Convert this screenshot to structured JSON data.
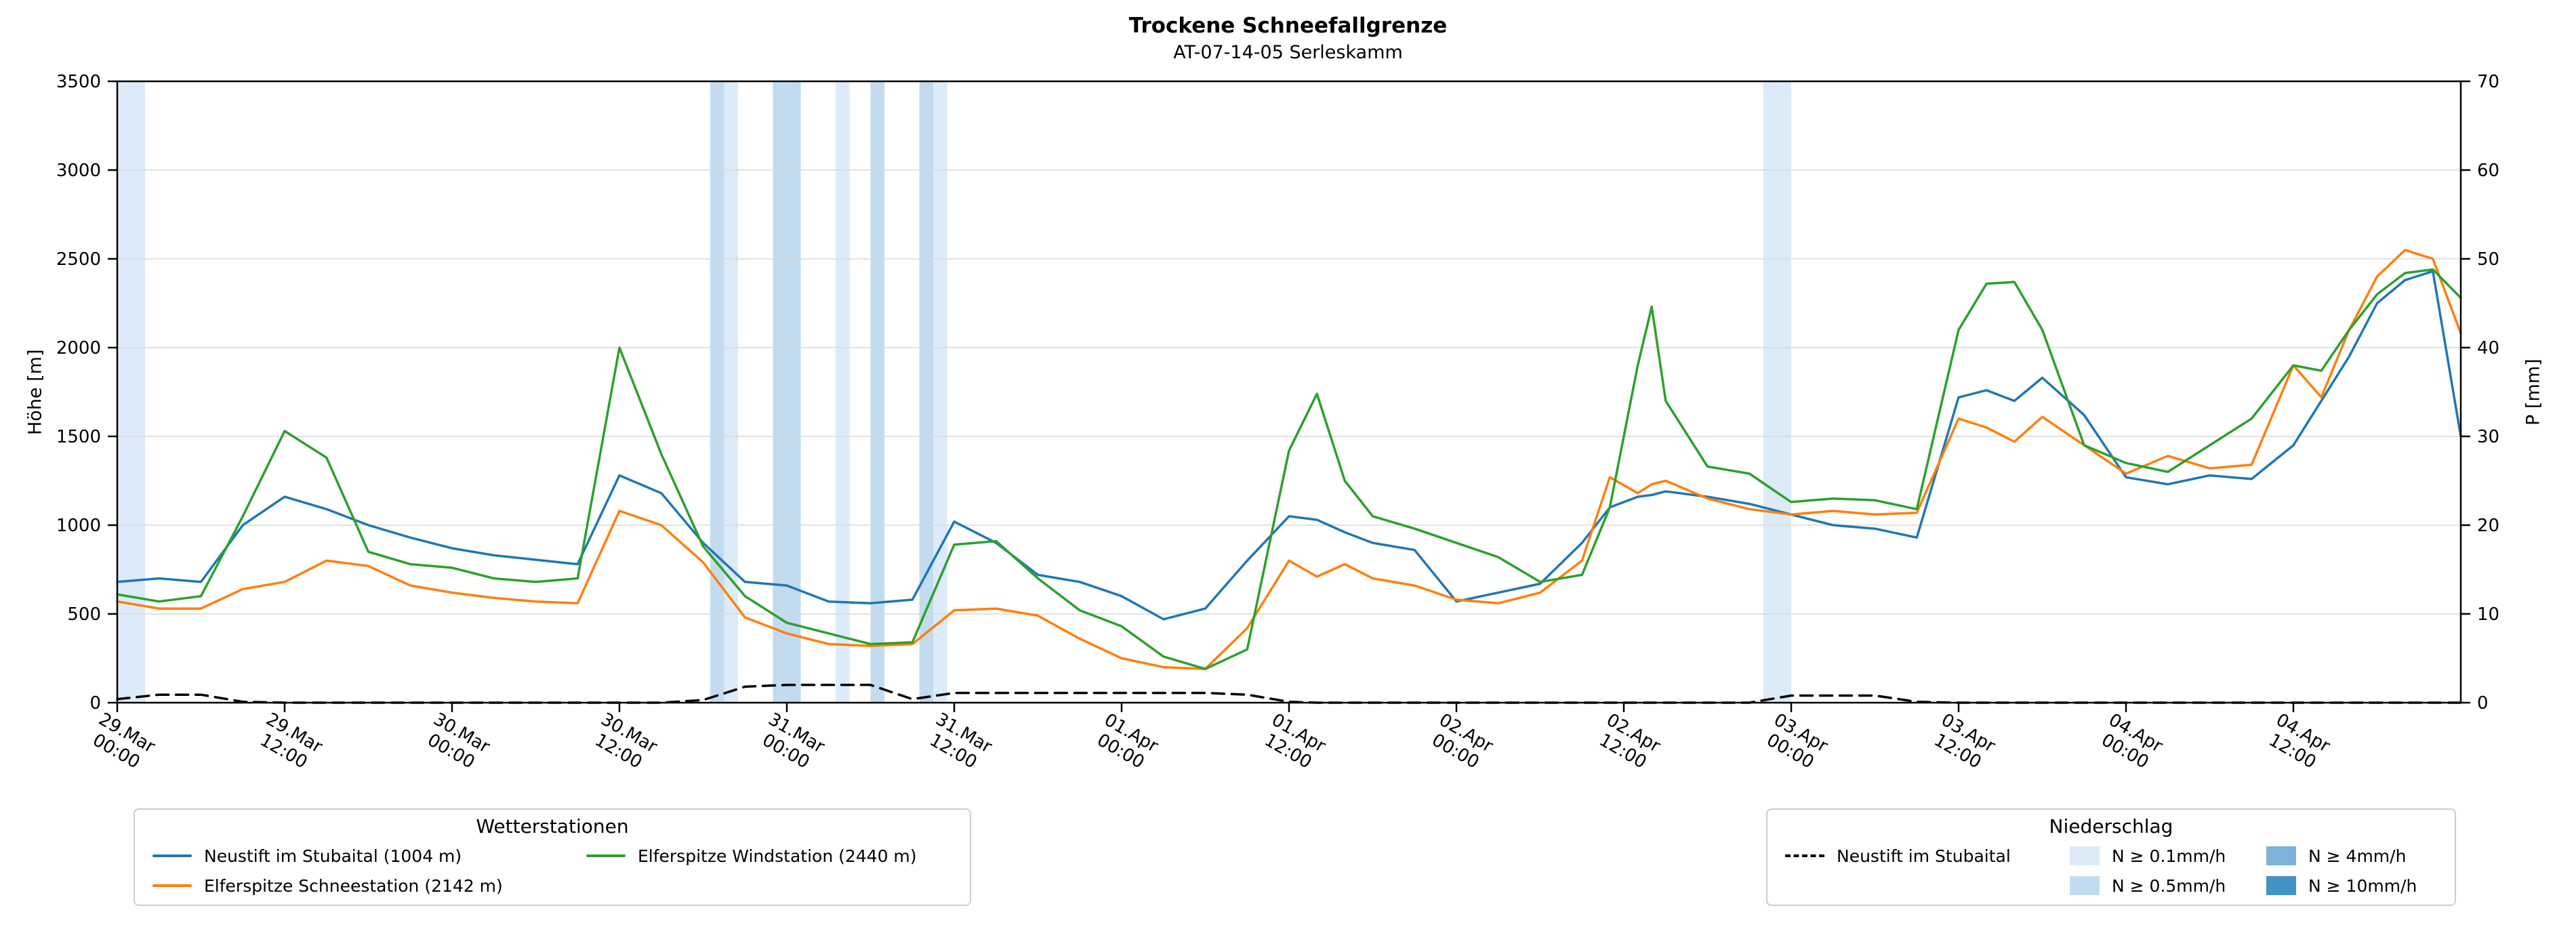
{
  "title": "Trockene Schneefallgrenze",
  "subtitle": "AT-07-14-05 Serleskamm",
  "axes": {
    "y_left": {
      "label": "Höhe [m]",
      "min": 0,
      "max": 3500,
      "ticks": [
        0,
        500,
        1000,
        1500,
        2000,
        2500,
        3000,
        3500
      ]
    },
    "y_right": {
      "label": "P [mm]",
      "min": 0,
      "max": 70,
      "ticks": [
        0,
        10,
        20,
        30,
        40,
        50,
        60,
        70
      ]
    },
    "x": {
      "start_hour": 0,
      "end_hour": 168,
      "tick_interval_h": 12,
      "tick_labels": [
        [
          "29.Mar",
          "00:00"
        ],
        [
          "29.Mar",
          "12:00"
        ],
        [
          "30.Mar",
          "00:00"
        ],
        [
          "30.Mar",
          "12:00"
        ],
        [
          "31.Mar",
          "00:00"
        ],
        [
          "31.Mar",
          "12:00"
        ],
        [
          "01.Apr",
          "00:00"
        ],
        [
          "01.Apr",
          "12:00"
        ],
        [
          "02.Apr",
          "00:00"
        ],
        [
          "02.Apr",
          "12:00"
        ],
        [
          "03.Apr",
          "00:00"
        ],
        [
          "03.Apr",
          "12:00"
        ],
        [
          "04.Apr",
          "00:00"
        ],
        [
          "04.Apr",
          "12:00"
        ]
      ]
    },
    "grid": "horizontal-only"
  },
  "chart_data": {
    "type": "line",
    "title": "Trockene Schneefallgrenze",
    "subtitle": "AT-07-14-05 Serleskamm",
    "xlabel": "",
    "ylabel_left": "Höhe [m]",
    "ylabel_right": "P [mm]",
    "ylim_left": [
      0,
      3500
    ],
    "ylim_right": [
      0,
      70
    ],
    "x_unit": "hours since 29.Mar 00:00",
    "x_hours": [
      0,
      3,
      6,
      9,
      12,
      15,
      18,
      21,
      24,
      27,
      30,
      33,
      36,
      39,
      42,
      45,
      48,
      51,
      54,
      57,
      60,
      63,
      66,
      69,
      72,
      75,
      78,
      81,
      84,
      86,
      88,
      90,
      93,
      96,
      99,
      102,
      105,
      107,
      109,
      110,
      111,
      114,
      117,
      120,
      123,
      126,
      129,
      132,
      134,
      136,
      138,
      141,
      144,
      147,
      150,
      153,
      156,
      158,
      160,
      162,
      164,
      166,
      168
    ],
    "series": [
      {
        "id": "neustift",
        "name": "Neustift im Stubaital (1004 m)",
        "color": "#1f77b4",
        "axis": "left",
        "style": "solid",
        "values": [
          680,
          700,
          680,
          1000,
          1160,
          1090,
          1000,
          930,
          870,
          830,
          805,
          780,
          1280,
          1180,
          900,
          680,
          660,
          570,
          560,
          580,
          1020,
          900,
          720,
          680,
          600,
          470,
          530,
          800,
          1050,
          1030,
          960,
          900,
          860,
          570,
          620,
          670,
          900,
          1100,
          1160,
          1170,
          1190,
          1160,
          1120,
          1060,
          1000,
          980,
          930,
          1720,
          1760,
          1700,
          1830,
          1620,
          1270,
          1230,
          1280,
          1260,
          1450,
          1700,
          1950,
          2250,
          2380,
          2430,
          1500
        ]
      },
      {
        "id": "schneestation",
        "name": "Elferspitze Schneestation (2142 m)",
        "color": "#ff7f0e",
        "axis": "left",
        "style": "solid",
        "values": [
          570,
          530,
          530,
          640,
          680,
          800,
          770,
          660,
          620,
          590,
          570,
          560,
          1080,
          1000,
          790,
          480,
          390,
          330,
          320,
          330,
          520,
          530,
          490,
          360,
          250,
          200,
          190,
          420,
          800,
          710,
          780,
          700,
          660,
          580,
          560,
          620,
          800,
          1270,
          1180,
          1230,
          1250,
          1150,
          1090,
          1060,
          1080,
          1060,
          1070,
          1600,
          1550,
          1470,
          1610,
          1450,
          1290,
          1390,
          1320,
          1340,
          1900,
          1720,
          2100,
          2400,
          2550,
          2500,
          2080
        ]
      },
      {
        "id": "windstation",
        "name": "Elferspitze Windstation (2440 m)",
        "color": "#2ca02c",
        "axis": "left",
        "style": "solid",
        "values": [
          610,
          570,
          600,
          1050,
          1530,
          1380,
          850,
          780,
          760,
          700,
          680,
          700,
          2000,
          1400,
          880,
          600,
          450,
          390,
          330,
          340,
          890,
          910,
          700,
          520,
          430,
          260,
          190,
          300,
          1420,
          1740,
          1250,
          1050,
          980,
          900,
          820,
          680,
          720,
          1100,
          1900,
          2230,
          1700,
          1330,
          1290,
          1130,
          1150,
          1140,
          1090,
          2100,
          2360,
          2370,
          2100,
          1450,
          1350,
          1300,
          1450,
          1600,
          1900,
          1870,
          2100,
          2300,
          2420,
          2440,
          2280
        ]
      },
      {
        "id": "precip-neustift",
        "name": "Neustift im Stubaital",
        "color": "#000000",
        "axis": "right",
        "style": "dashed",
        "values": [
          0.4,
          0.9,
          0.9,
          0.1,
          0,
          0,
          0,
          0,
          0,
          0,
          0,
          0,
          0,
          0,
          0.3,
          1.8,
          2,
          2,
          2,
          0.4,
          1.1,
          1.1,
          1.1,
          1.1,
          1.1,
          1.1,
          1.1,
          0.9,
          0.1,
          0,
          0,
          0,
          0,
          0,
          0,
          0,
          0,
          0,
          0,
          0,
          0,
          0,
          0,
          0.8,
          0.8,
          0.8,
          0.1,
          0,
          0,
          0,
          0,
          0,
          0,
          0,
          0,
          0,
          0,
          0,
          0,
          0,
          0,
          0,
          0
        ]
      }
    ],
    "precip_bands": [
      {
        "start_h": 0,
        "end_h": 2,
        "level": "0.1"
      },
      {
        "start_h": 42.5,
        "end_h": 43.5,
        "level": "0.5"
      },
      {
        "start_h": 43.5,
        "end_h": 44.5,
        "level": "0.1"
      },
      {
        "start_h": 47,
        "end_h": 49,
        "level": "0.5"
      },
      {
        "start_h": 51.5,
        "end_h": 52.5,
        "level": "0.1"
      },
      {
        "start_h": 54,
        "end_h": 55,
        "level": "0.5"
      },
      {
        "start_h": 57.5,
        "end_h": 58.5,
        "level": "0.5"
      },
      {
        "start_h": 58.5,
        "end_h": 59.5,
        "level": "0.1"
      },
      {
        "start_h": 118,
        "end_h": 120,
        "level": "0.1"
      }
    ],
    "band_colors": {
      "0.1": "#dcebf7",
      "0.5": "#c3dbee",
      "4": "#7eb2d8",
      "10": "#4292c6"
    },
    "legend_position": "below"
  },
  "legend_stations": {
    "title": "Wetterstationen",
    "entries": [
      {
        "label": "Neustift im Stubaital (1004 m)"
      },
      {
        "label": "Elferspitze Schneestation (2142 m)"
      },
      {
        "label": "Elferspitze Windstation (2440 m)"
      }
    ]
  },
  "legend_precip": {
    "title": "Niederschlag",
    "line_entry": "Neustift im Stubaital",
    "patch_entries": [
      {
        "level": "0.1",
        "label": "N ≥ 0.1mm/h"
      },
      {
        "level": "0.5",
        "label": "N ≥ 0.5mm/h"
      },
      {
        "level": "4",
        "label": "N ≥ 4mm/h"
      },
      {
        "level": "10",
        "label": "N ≥ 10mm/h"
      }
    ]
  }
}
